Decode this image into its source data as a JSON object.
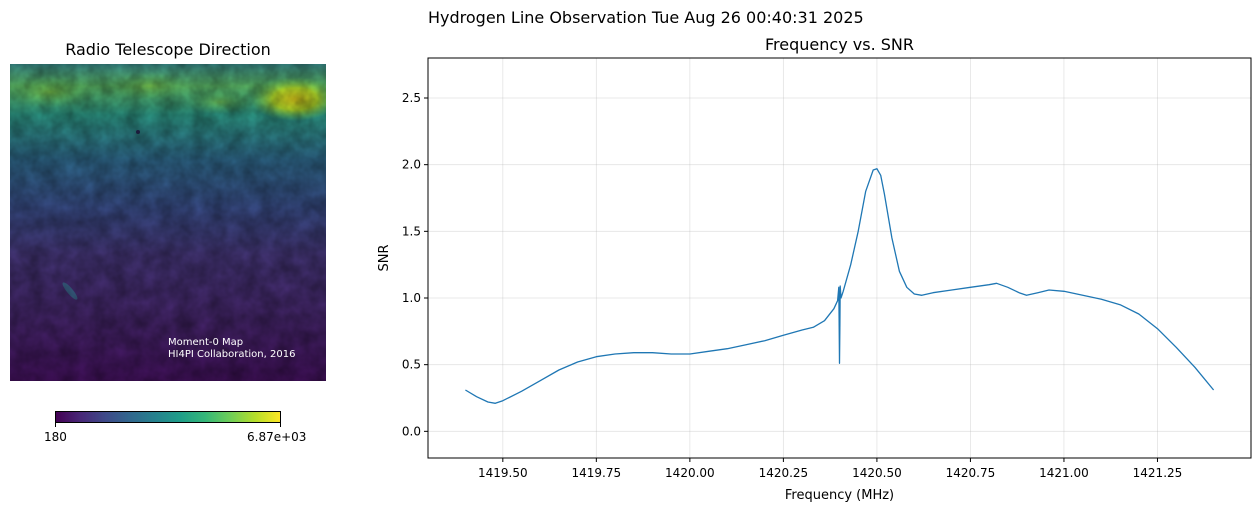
{
  "suptitle": "Hydrogen Line Observation Tue Aug 26 00:40:31 2025",
  "map_panel": {
    "title": "Radio Telescope Direction",
    "note_line1": "Moment-0 Map",
    "note_line2": "HI4PI Collaboration, 2016",
    "colormap": "viridis",
    "colorbar": {
      "min_label": "180",
      "max_label": "6.87e+03",
      "min": 180,
      "max": 6870
    }
  },
  "chart_data": {
    "type": "line",
    "title": "Frequency vs. SNR",
    "xlabel": "Frequency (MHz)",
    "ylabel": "SNR",
    "xlim": [
      1419.3,
      1421.5
    ],
    "ylim": [
      -0.2,
      2.8
    ],
    "grid": true,
    "xticks": [
      1419.5,
      1419.75,
      1420.0,
      1420.25,
      1420.5,
      1420.75,
      1421.0,
      1421.25
    ],
    "xtick_labels": [
      "1419.50",
      "1419.75",
      "1420.00",
      "1420.25",
      "1420.50",
      "1420.75",
      "1421.00",
      "1421.25"
    ],
    "yticks": [
      0.0,
      0.5,
      1.0,
      1.5,
      2.0,
      2.5
    ],
    "ytick_labels": [
      "0.0",
      "0.5",
      "1.0",
      "1.5",
      "2.0",
      "2.5"
    ],
    "series": [
      {
        "color": "#1f77b4",
        "x": [
          1419.4,
          1419.43,
          1419.46,
          1419.48,
          1419.5,
          1419.55,
          1419.6,
          1419.65,
          1419.7,
          1419.75,
          1419.8,
          1419.85,
          1419.9,
          1419.95,
          1420.0,
          1420.05,
          1420.1,
          1420.15,
          1420.2,
          1420.25,
          1420.3,
          1420.33,
          1420.36,
          1420.385,
          1420.395,
          1420.398,
          1420.399,
          1420.4,
          1420.401,
          1420.402,
          1420.404,
          1420.41,
          1420.43,
          1420.45,
          1420.47,
          1420.49,
          1420.5,
          1420.51,
          1420.52,
          1420.54,
          1420.56,
          1420.58,
          1420.6,
          1420.62,
          1420.65,
          1420.7,
          1420.75,
          1420.8,
          1420.82,
          1420.85,
          1420.88,
          1420.9,
          1420.93,
          1420.96,
          1421.0,
          1421.05,
          1421.1,
          1421.15,
          1421.2,
          1421.25,
          1421.3,
          1421.35,
          1421.4
        ],
        "y": [
          0.31,
          0.26,
          0.22,
          0.21,
          0.23,
          0.3,
          0.38,
          0.46,
          0.52,
          0.56,
          0.58,
          0.59,
          0.59,
          0.58,
          0.58,
          0.6,
          0.62,
          0.65,
          0.68,
          0.72,
          0.76,
          0.78,
          0.83,
          0.92,
          0.98,
          1.08,
          0.85,
          0.51,
          0.8,
          1.09,
          1.0,
          1.05,
          1.25,
          1.5,
          1.8,
          1.96,
          1.97,
          1.92,
          1.78,
          1.45,
          1.2,
          1.08,
          1.03,
          1.02,
          1.04,
          1.06,
          1.08,
          1.1,
          1.11,
          1.08,
          1.04,
          1.02,
          1.04,
          1.06,
          1.05,
          1.02,
          0.99,
          0.95,
          0.88,
          0.77,
          0.63,
          0.48,
          0.31
        ]
      }
    ]
  }
}
